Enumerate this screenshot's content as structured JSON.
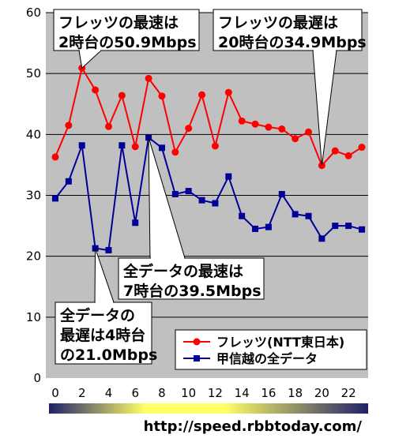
{
  "chart_data": {
    "type": "line",
    "x": [
      0,
      1,
      2,
      3,
      4,
      5,
      6,
      7,
      8,
      9,
      10,
      11,
      12,
      13,
      14,
      15,
      16,
      17,
      18,
      19,
      20,
      21,
      22,
      23
    ],
    "x_tick_labels": [
      "0",
      "2",
      "4",
      "6",
      "8",
      "10",
      "12",
      "14",
      "16",
      "18",
      "20",
      "22"
    ],
    "y_tick_labels": [
      "0",
      "10",
      "20",
      "30",
      "40",
      "50",
      "60"
    ],
    "ylim": [
      0,
      60
    ],
    "grid": "horizontal",
    "legend_placement": "bottom-right",
    "series": [
      {
        "name": "フレッツ(NTT東日本)",
        "color": "#ff0000",
        "marker": "circle",
        "values": [
          36.3,
          41.5,
          50.9,
          47.3,
          41.3,
          46.4,
          38.0,
          49.2,
          46.3,
          37.1,
          41.0,
          46.5,
          38.1,
          46.9,
          42.2,
          41.7,
          41.2,
          40.9,
          39.3,
          40.4,
          34.9,
          37.3,
          36.5,
          37.9
        ]
      },
      {
        "name": "甲信越の全データ",
        "color": "#000099",
        "marker": "square",
        "values": [
          29.5,
          32.3,
          38.2,
          21.3,
          21.0,
          38.2,
          25.5,
          39.5,
          37.8,
          30.2,
          30.7,
          29.2,
          28.7,
          33.1,
          26.6,
          24.5,
          24.8,
          30.2,
          26.9,
          26.6,
          22.9,
          25.0,
          25.0,
          24.4
        ]
      }
    ],
    "annotations": [
      {
        "id": "max-flets",
        "lines": [
          "フレッツの最速は",
          "2時台の50.9Mbps"
        ],
        "x": 2,
        "y": 50.9
      },
      {
        "id": "min-flets",
        "lines": [
          "フレッツの最遅は",
          "20時台の34.9Mbps"
        ],
        "x": 20,
        "y": 34.9
      },
      {
        "id": "max-all",
        "lines": [
          "全データの最速は",
          "7時台の39.5Mbps"
        ],
        "x": 7,
        "y": 39.5
      },
      {
        "id": "min-all",
        "lines": [
          "全データの",
          "最遅は4時台",
          "の21.0Mbps"
        ],
        "x": 3,
        "y": 21.3
      }
    ]
  },
  "footer": {
    "url": "http://speed.rbbtoday.com/"
  },
  "colors": {
    "plot_bg": "#c0c0c0",
    "grid": "#000000",
    "bar_dark": "#20206a",
    "bar_light": "#ffff66"
  }
}
